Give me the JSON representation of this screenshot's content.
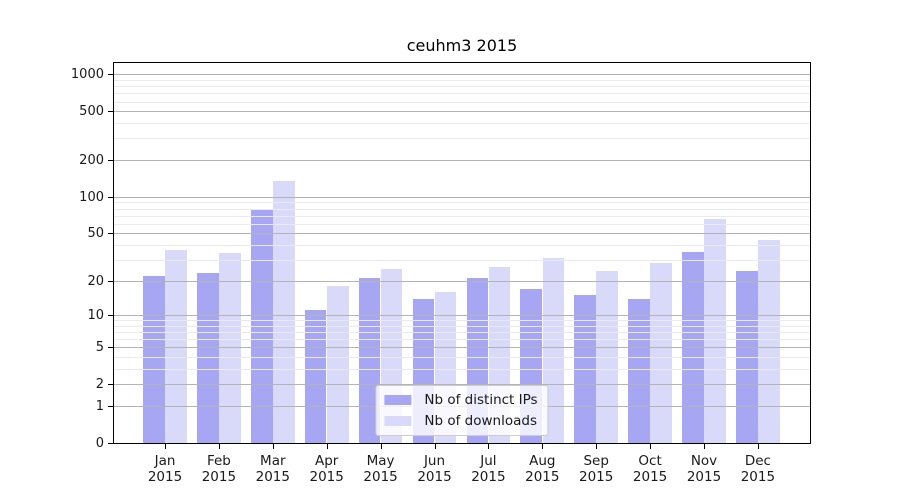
{
  "title": "ceuhm3 2015",
  "colors": {
    "ips": "#a6a6f2",
    "downloads": "#d9d9fa",
    "major_grid": "#b3b3b3",
    "minor_grid": "#e9e9ee",
    "axis": "#000000",
    "legend_border": "#cccccc"
  },
  "legend": {
    "position": "lower center",
    "items": [
      {
        "label": "Nb of distinct IPs",
        "color_key": "ips"
      },
      {
        "label": "Nb of downloads",
        "color_key": "downloads"
      }
    ]
  },
  "chart_data": {
    "type": "bar",
    "title": "ceuhm3 2015",
    "categories": [
      "Jan",
      "Feb",
      "Mar",
      "Apr",
      "May",
      "Jun",
      "Jul",
      "Aug",
      "Sep",
      "Oct",
      "Nov",
      "Dec"
    ],
    "year_label": "2015",
    "series": [
      {
        "name": "Nb of distinct IPs",
        "color_key": "ips",
        "values": [
          22,
          23,
          78,
          11,
          21,
          14,
          21,
          17,
          15,
          14,
          35,
          24
        ]
      },
      {
        "name": "Nb of downloads",
        "color_key": "downloads",
        "values": [
          36,
          34,
          134,
          18,
          25,
          16,
          26,
          31,
          24,
          28,
          65,
          44
        ]
      }
    ],
    "xlabel": "",
    "ylabel": "",
    "yscale": "log1p",
    "ylim": [
      0,
      1238
    ],
    "y_major_ticks": [
      1000,
      500,
      200,
      100,
      50,
      20,
      10,
      5,
      2,
      1,
      0
    ],
    "y_minor_ticks": [
      900,
      800,
      700,
      600,
      400,
      300,
      90,
      80,
      70,
      60,
      40,
      30,
      9,
      8,
      7,
      6,
      4,
      3
    ],
    "grid": true,
    "legend_position": "lower center"
  }
}
